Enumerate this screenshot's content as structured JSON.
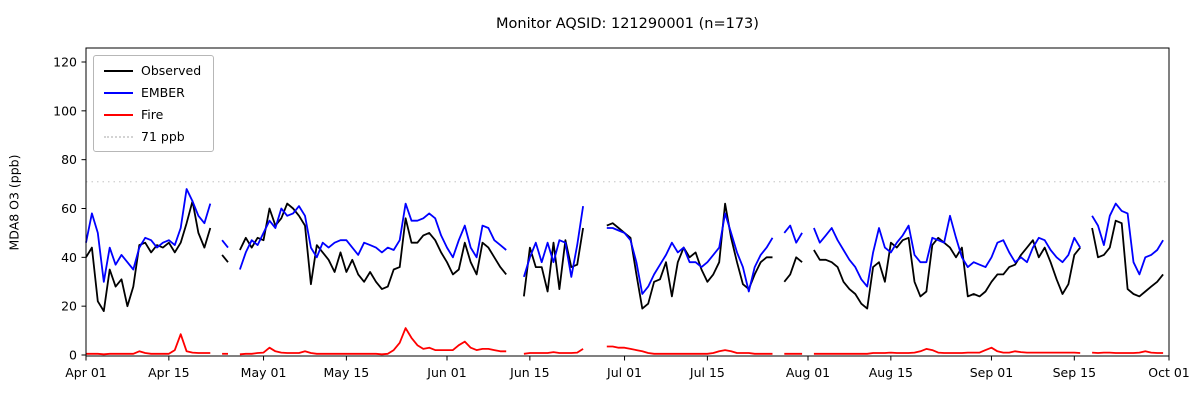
{
  "figure": {
    "title": "Monitor AQSID: 121290001 (n=173)",
    "ylabel": "MDA8 O3 (ppb)",
    "legend": [
      {
        "label": "Observed",
        "color": "#000000",
        "style": "solid"
      },
      {
        "label": "EMBER",
        "color": "#0000ff",
        "style": "solid"
      },
      {
        "label": "Fire",
        "color": "#ff0000",
        "style": "solid"
      },
      {
        "label": "71 ppb",
        "color": "#d3d3d3",
        "style": "dotted"
      }
    ]
  },
  "chart_data": {
    "type": "line",
    "title": "Monitor AQSID: 121290001 (n=173)",
    "xlabel": "",
    "ylabel": "MDA8 O3 (ppb)",
    "x_unit": "daily values, day index 0 = Apr 01, gaps = missing days",
    "n_points_label": "n=173",
    "n_days_axis": 183,
    "ylim": [
      0,
      126
    ],
    "y_ticks": [
      0,
      20,
      40,
      60,
      80,
      100,
      120
    ],
    "x_ticks": [
      {
        "day": 0,
        "label": "Apr 01"
      },
      {
        "day": 14,
        "label": "Apr 15"
      },
      {
        "day": 30,
        "label": "May 01"
      },
      {
        "day": 44,
        "label": "May 15"
      },
      {
        "day": 61,
        "label": "Jun 01"
      },
      {
        "day": 75,
        "label": "Jun 15"
      },
      {
        "day": 91,
        "label": "Jul 01"
      },
      {
        "day": 105,
        "label": "Jul 15"
      },
      {
        "day": 122,
        "label": "Aug 01"
      },
      {
        "day": 136,
        "label": "Aug 15"
      },
      {
        "day": 153,
        "label": "Sep 01"
      },
      {
        "day": 167,
        "label": "Sep 15"
      },
      {
        "day": 183,
        "label": "Oct 01"
      }
    ],
    "threshold": {
      "value": 71,
      "label": "71 ppb",
      "color": "#d3d3d3",
      "style": "dotted"
    },
    "grid": false,
    "legend_position": "upper left",
    "series": [
      {
        "name": "Observed",
        "color": "#000000",
        "values": [
          40,
          44,
          22,
          18,
          35,
          28,
          31,
          20,
          28,
          45,
          46,
          42,
          45,
          44,
          46,
          42,
          46,
          54,
          63,
          50,
          44,
          52,
          null,
          41,
          38,
          null,
          43,
          48,
          44,
          48,
          47,
          60,
          53,
          56,
          62,
          60,
          57,
          53,
          29,
          45,
          42,
          39,
          34,
          42,
          34,
          39,
          33,
          30,
          34,
          30,
          27,
          28,
          35,
          36,
          56,
          46,
          46,
          49,
          50,
          47,
          42,
          38,
          33,
          35,
          46,
          38,
          33,
          46,
          44,
          40,
          36,
          33,
          null,
          null,
          24,
          44,
          36,
          36,
          26,
          46,
          27,
          47,
          36,
          37,
          52,
          null,
          null,
          null,
          53,
          54,
          52,
          50,
          48,
          33,
          19,
          21,
          30,
          31,
          38,
          24,
          38,
          44,
          40,
          42,
          35,
          30,
          33,
          38,
          62,
          48,
          38,
          29,
          27,
          33,
          38,
          40,
          40,
          null,
          30,
          33,
          40,
          38,
          null,
          43,
          39,
          39,
          38,
          36,
          30,
          27,
          25,
          21,
          19,
          36,
          38,
          30,
          46,
          44,
          47,
          48,
          30,
          24,
          26,
          45,
          48,
          46,
          44,
          40,
          44,
          24,
          25,
          24,
          26,
          30,
          33,
          33,
          36,
          37,
          41,
          44,
          47,
          40,
          44,
          38,
          31,
          25,
          29,
          41,
          44,
          null,
          52,
          40,
          41,
          44,
          55,
          54,
          27,
          25,
          24,
          26,
          28,
          30,
          33
        ]
      },
      {
        "name": "EMBER",
        "color": "#0000ff",
        "values": [
          46,
          58,
          50,
          30,
          44,
          37,
          41,
          38,
          35,
          44,
          48,
          47,
          44,
          46,
          47,
          45,
          52,
          68,
          63,
          57,
          54,
          62,
          null,
          47,
          44,
          null,
          35,
          42,
          47,
          45,
          50,
          55,
          52,
          60,
          57,
          58,
          61,
          57,
          44,
          40,
          46,
          44,
          46,
          47,
          47,
          44,
          41,
          46,
          45,
          44,
          42,
          44,
          43,
          47,
          62,
          55,
          55,
          56,
          58,
          56,
          49,
          44,
          40,
          47,
          53,
          44,
          40,
          53,
          52,
          47,
          45,
          43,
          null,
          null,
          32,
          40,
          46,
          38,
          46,
          38,
          47,
          46,
          32,
          45,
          61,
          null,
          null,
          null,
          52,
          52,
          51,
          50,
          47,
          38,
          25,
          28,
          33,
          37,
          41,
          46,
          42,
          44,
          38,
          38,
          36,
          38,
          41,
          44,
          58,
          50,
          42,
          36,
          26,
          36,
          41,
          44,
          48,
          null,
          50,
          53,
          46,
          50,
          null,
          52,
          46,
          49,
          52,
          47,
          43,
          39,
          36,
          31,
          28,
          42,
          52,
          44,
          42,
          46,
          49,
          53,
          41,
          38,
          38,
          48,
          47,
          46,
          57,
          48,
          40,
          36,
          38,
          37,
          36,
          40,
          46,
          47,
          42,
          38,
          40,
          38,
          44,
          48,
          47,
          43,
          40,
          38,
          41,
          48,
          44,
          null,
          57,
          53,
          45,
          57,
          62,
          59,
          58,
          38,
          33,
          40,
          41,
          43,
          47
        ]
      },
      {
        "name": "Fire",
        "color": "#ff0000",
        "values": [
          0.5,
          0.5,
          0.5,
          0.3,
          0.5,
          0.5,
          0.5,
          0.5,
          0.5,
          1.5,
          0.8,
          0.5,
          0.5,
          0.5,
          0.5,
          2,
          8.5,
          1.5,
          1,
          0.8,
          0.8,
          0.8,
          null,
          0.5,
          0.5,
          null,
          0.3,
          0.5,
          0.5,
          0.8,
          1,
          3,
          1.5,
          1,
          0.8,
          0.8,
          0.8,
          1.5,
          0.8,
          0.5,
          0.5,
          0.5,
          0.5,
          0.5,
          0.5,
          0.5,
          0.5,
          0.5,
          0.5,
          0.5,
          0.3,
          0.5,
          2,
          5,
          11,
          7,
          4,
          2.5,
          3,
          2,
          2,
          2,
          2,
          4,
          5.5,
          3,
          2,
          2.5,
          2.5,
          2,
          1.5,
          1.5,
          null,
          null,
          0.5,
          0.8,
          0.8,
          0.8,
          0.8,
          1.2,
          0.8,
          0.8,
          0.8,
          1,
          2.5,
          null,
          null,
          null,
          3.5,
          3.5,
          3,
          3,
          2.5,
          2,
          1.5,
          0.8,
          0.5,
          0.5,
          0.5,
          0.5,
          0.5,
          0.5,
          0.5,
          0.5,
          0.5,
          0.5,
          0.8,
          1.5,
          2,
          1.5,
          0.8,
          0.8,
          0.8,
          0.5,
          0.5,
          0.5,
          0.5,
          null,
          0.5,
          0.5,
          0.5,
          0.5,
          null,
          0.5,
          0.5,
          0.5,
          0.5,
          0.5,
          0.5,
          0.5,
          0.5,
          0.5,
          0.5,
          0.8,
          0.8,
          0.8,
          1,
          0.8,
          0.8,
          0.8,
          1,
          1.5,
          2.5,
          2,
          1,
          0.8,
          0.8,
          0.8,
          0.8,
          1,
          1,
          1,
          2,
          3,
          1.5,
          1,
          1,
          1.5,
          1.2,
          1,
          1,
          1,
          1,
          1,
          1,
          1,
          1,
          1,
          0.8,
          null,
          1,
          0.8,
          1,
          1,
          0.8,
          0.8,
          0.8,
          0.8,
          1,
          1.5,
          1,
          0.8,
          0.8
        ]
      }
    ]
  }
}
